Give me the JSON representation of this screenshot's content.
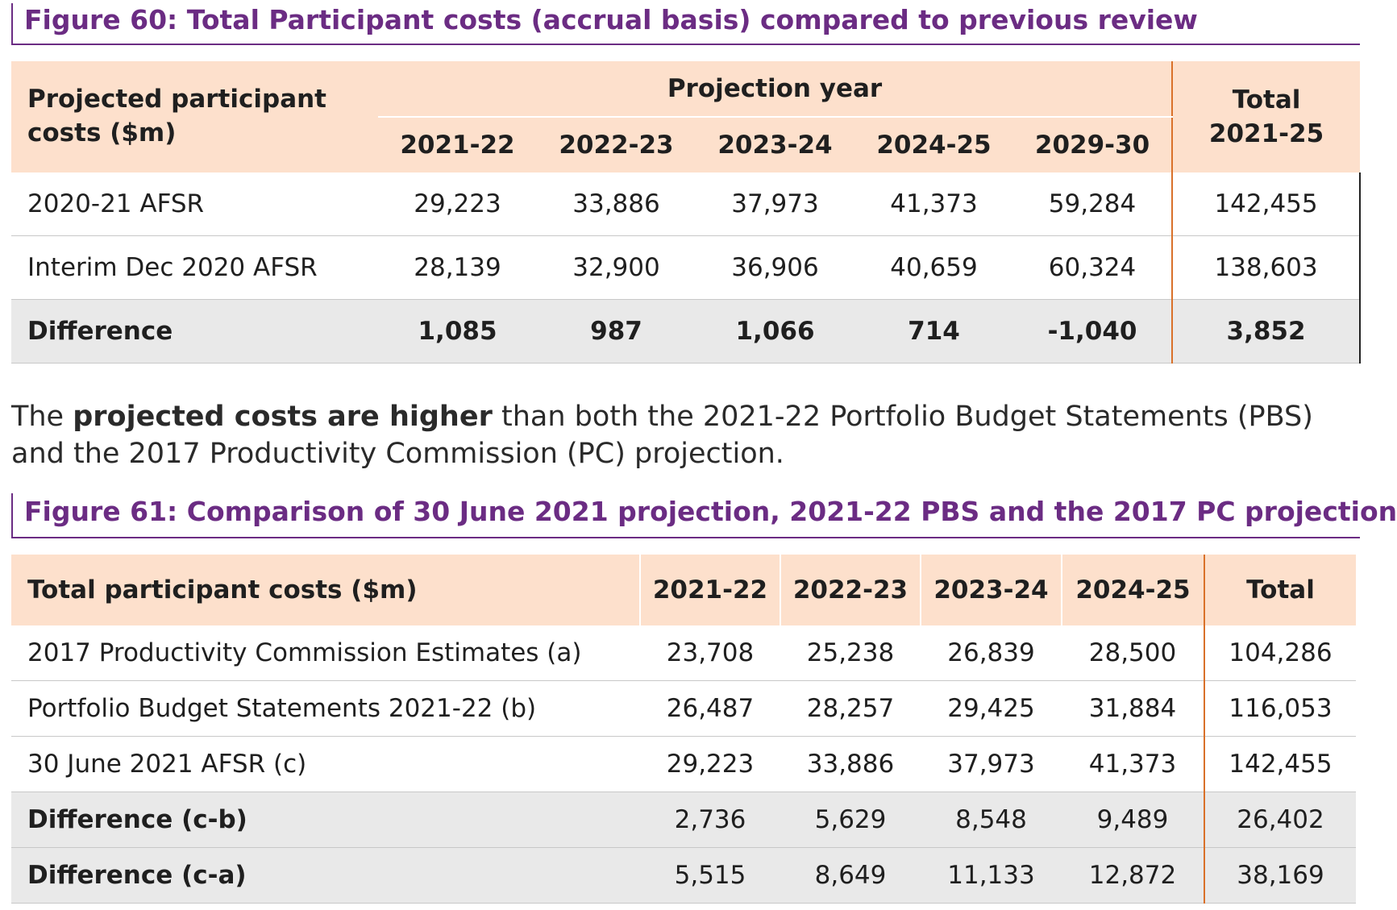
{
  "figure60": {
    "title": "Figure 60: Total Participant costs (accrual basis) compared to previous review",
    "header_label": "Projected participant costs ($m)",
    "header_label_lines": [
      "Projected participant",
      "costs ($m)"
    ],
    "group_header": "Projection year",
    "years": [
      "2021-22",
      "2022-23",
      "2023-24",
      "2024-25",
      "2029-30"
    ],
    "total_header_lines": [
      "Total",
      "2021-25"
    ],
    "rows": [
      {
        "label": "2020-21 AFSR",
        "values": [
          "29,223",
          "33,886",
          "37,973",
          "41,373",
          "59,284"
        ],
        "total": "142,455"
      },
      {
        "label": "Interim Dec 2020 AFSR",
        "values": [
          "28,139",
          "32,900",
          "36,906",
          "40,659",
          "60,324"
        ],
        "total": "138,603"
      },
      {
        "label": "Difference",
        "values": [
          "1,085",
          "987",
          "1,066",
          "714",
          "-1,040"
        ],
        "total": "3,852"
      }
    ]
  },
  "paragraph": {
    "before": "The ",
    "bold": "projected costs are higher",
    "after": " than both the 2021-22 Portfolio Budget Statements (PBS) and the 2017 Productivity Commission (PC) projection."
  },
  "figure61": {
    "title": "Figure 61: Comparison of 30 June 2021 projection, 2021-22 PBS and the 2017 PC projection",
    "header_label": "Total participant costs ($m)",
    "years": [
      "2021-22",
      "2022-23",
      "2023-24",
      "2024-25"
    ],
    "total_header": "Total",
    "rows": [
      {
        "label": "2017 Productivity Commission Estimates (a)",
        "values": [
          "23,708",
          "25,238",
          "26,839",
          "28,500"
        ],
        "total": "104,286"
      },
      {
        "label": "Portfolio Budget Statements 2021-22 (b)",
        "values": [
          "26,487",
          "28,257",
          "29,425",
          "31,884"
        ],
        "total": "116,053"
      },
      {
        "label": "30 June 2021 AFSR (c)",
        "values": [
          "29,223",
          "33,886",
          "37,973",
          "41,373"
        ],
        "total": "142,455"
      },
      {
        "label": "Difference (c-b)",
        "values": [
          "2,736",
          "5,629",
          "8,548",
          "9,489"
        ],
        "total": "26,402"
      },
      {
        "label": "Difference (c-a)",
        "values": [
          "5,515",
          "8,649",
          "11,133",
          "12,872"
        ],
        "total": "38,169"
      }
    ]
  },
  "colors": {
    "title_purple": "#6b2c83",
    "header_peach": "#fde0cc",
    "divider_orange": "#d9712a",
    "difference_grey": "#e9e9e9"
  }
}
